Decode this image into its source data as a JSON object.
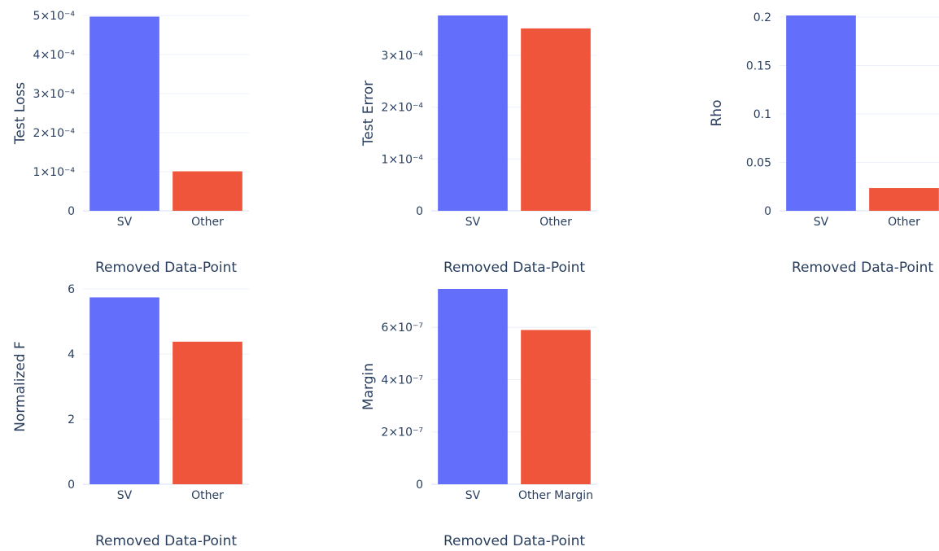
{
  "chart_data": [
    {
      "type": "bar",
      "categories": [
        "SV",
        "Other"
      ],
      "values": [
        0.000497,
        0.000101
      ],
      "colors": [
        "#636efa",
        "#ef553b"
      ],
      "xlabel": "Removed Data-Point",
      "ylabel": "Test Loss",
      "ylim": [
        0,
        0.0005
      ],
      "yticks": [
        0,
        0.0001,
        0.0002,
        0.0003,
        0.0004,
        0.0005
      ],
      "ytick_labels": [
        "0",
        "1×10⁻⁴",
        "2×10⁻⁴",
        "3×10⁻⁴",
        "4×10⁻⁴",
        "5×10⁻⁴"
      ]
    },
    {
      "type": "bar",
      "categories": [
        "SV",
        "Other"
      ],
      "values": [
        0.000377,
        0.000352
      ],
      "colors": [
        "#636efa",
        "#ef553b"
      ],
      "xlabel": "Removed Data-Point",
      "ylabel": "Test Error",
      "ylim": [
        0,
        0.000377
      ],
      "yticks": [
        0,
        0.0001,
        0.0002,
        0.0003
      ],
      "ytick_labels": [
        "0",
        "1×10⁻⁴",
        "2×10⁻⁴",
        "3×10⁻⁴"
      ]
    },
    {
      "type": "bar",
      "categories": [
        "SV",
        "Other"
      ],
      "values": [
        0.2017,
        0.0235
      ],
      "colors": [
        "#636efa",
        "#ef553b"
      ],
      "xlabel": "Removed Data-Point",
      "ylabel": "Rho",
      "ylim": [
        0,
        0.2017
      ],
      "yticks": [
        0,
        0.05,
        0.1,
        0.15,
        0.2
      ],
      "ytick_labels": [
        "0",
        "0.05",
        "0.1",
        "0.15",
        "0.2"
      ]
    },
    {
      "type": "bar",
      "categories": [
        "SV",
        "Other"
      ],
      "values": [
        5.74,
        4.38
      ],
      "colors": [
        "#636efa",
        "#ef553b"
      ],
      "xlabel": "Removed Data-Point",
      "ylabel": "Normalized F",
      "ylim": [
        0,
        6
      ],
      "yticks": [
        0,
        2,
        4,
        6
      ],
      "ytick_labels": [
        "0",
        "2",
        "4",
        "6"
      ]
    },
    {
      "type": "bar",
      "categories": [
        "SV",
        "Other Margin"
      ],
      "values": [
        7.47e-07,
        5.9e-07
      ],
      "colors": [
        "#636efa",
        "#ef553b"
      ],
      "xlabel": "Removed Data-Point",
      "ylabel": "Margin",
      "ylim": [
        0,
        7.47e-07
      ],
      "yticks": [
        0,
        2e-07,
        4e-07,
        6e-07
      ],
      "ytick_labels": [
        "0",
        "2×10⁻⁷",
        "4×10⁻⁷",
        "6×10⁻⁷"
      ]
    }
  ]
}
